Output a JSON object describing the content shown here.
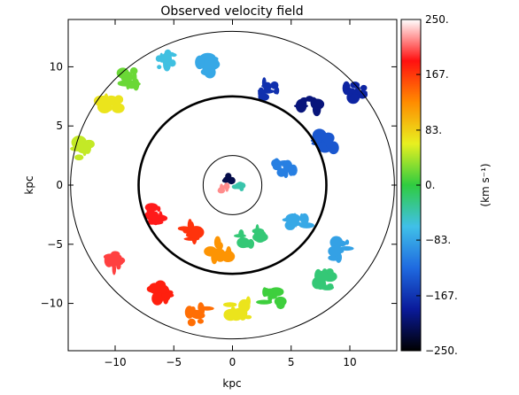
{
  "chart_data": {
    "type": "heatmap",
    "title": "Observed velocity field",
    "xlabel": "kpc",
    "ylabel": "kpc",
    "xlim": [
      -14,
      14
    ],
    "ylim": [
      -14,
      14
    ],
    "xticks": [
      -10,
      -5,
      0,
      5,
      10
    ],
    "xtick_labels": [
      "−10",
      "−5",
      "0",
      "5",
      "10"
    ],
    "yticks": [
      10,
      5,
      0,
      -5,
      -10
    ],
    "ytick_labels": [
      "10",
      "5",
      "0",
      "−5",
      "−10"
    ],
    "grid": false,
    "colorbar": {
      "label": "(km s⁻¹)",
      "range": [
        -250,
        250
      ],
      "ticks": [
        250,
        167,
        83,
        0,
        -83,
        -167,
        -250
      ],
      "tick_labels": [
        "250.",
        "167.",
        "83.",
        "0.",
        "−83.",
        "−167.",
        "−250."
      ],
      "colors": [
        "#000000",
        "#0a1a9a",
        "#1f6ae0",
        "#40c0e8",
        "#2fcc40",
        "#e8f020",
        "#ff8c00",
        "#ff1010",
        "#ffffff"
      ]
    },
    "ellipses": [
      {
        "cx": 0,
        "cy": 0,
        "rx": 2.5,
        "ry": 2.5,
        "style": "thin"
      },
      {
        "cx": 0,
        "cy": 0,
        "rx": 8.0,
        "ry": 7.5,
        "style": "thick"
      },
      {
        "cx": 0,
        "cy": 0,
        "rx": 13.8,
        "ry": 13.0,
        "style": "thin"
      }
    ],
    "regions": [
      {
        "x": -12.5,
        "y": 3.0,
        "v": 50
      },
      {
        "x": -10.5,
        "y": 7.0,
        "v": 70
      },
      {
        "x": -8.5,
        "y": 9.0,
        "v": 20
      },
      {
        "x": -5.5,
        "y": 10.5,
        "v": -60
      },
      {
        "x": -2.0,
        "y": 10.2,
        "v": -80
      },
      {
        "x": 3.0,
        "y": 8.0,
        "v": -170
      },
      {
        "x": 6.5,
        "y": 7.0,
        "v": -200
      },
      {
        "x": 10.5,
        "y": 8.0,
        "v": -180
      },
      {
        "x": 8.0,
        "y": 3.5,
        "v": -140
      },
      {
        "x": 4.5,
        "y": 1.5,
        "v": -110
      },
      {
        "x": 5.5,
        "y": -3.0,
        "v": -80
      },
      {
        "x": 9.5,
        "y": -5.5,
        "v": -85
      },
      {
        "x": 7.5,
        "y": -8.0,
        "v": -20
      },
      {
        "x": 3.5,
        "y": -9.5,
        "v": 5
      },
      {
        "x": 0.5,
        "y": -10.5,
        "v": 70
      },
      {
        "x": -3.0,
        "y": -11.0,
        "v": 140
      },
      {
        "x": -6.0,
        "y": -9.0,
        "v": 180
      },
      {
        "x": -10.5,
        "y": -6.5,
        "v": 200
      },
      {
        "x": -6.5,
        "y": -2.5,
        "v": 190
      },
      {
        "x": -3.5,
        "y": -4.0,
        "v": 170
      },
      {
        "x": -1.0,
        "y": -5.5,
        "v": 120
      },
      {
        "x": 1.5,
        "y": -4.5,
        "v": -20
      },
      {
        "x": -0.3,
        "y": 0.5,
        "v": -220
      },
      {
        "x": -0.8,
        "y": -0.3,
        "v": 220
      },
      {
        "x": 0.5,
        "y": -0.2,
        "v": -40
      }
    ]
  }
}
